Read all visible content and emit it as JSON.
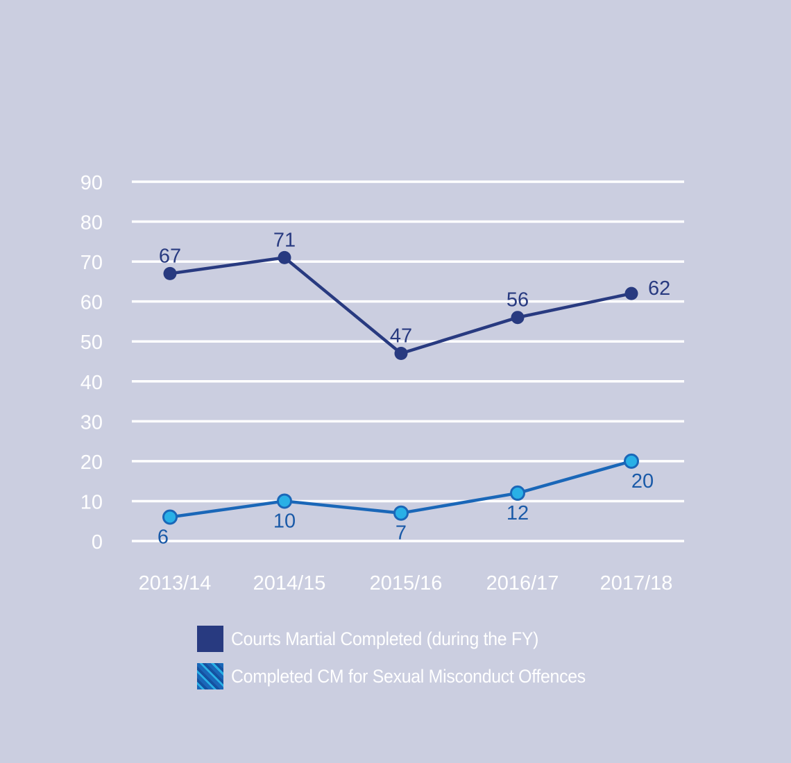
{
  "chart_data": {
    "type": "line",
    "categories": [
      "2013/14",
      "2014/15",
      "2015/16",
      "2016/17",
      "2017/18"
    ],
    "y_ticks": [
      "0",
      "10",
      "20",
      "30",
      "40",
      "50",
      "60",
      "70",
      "80",
      "90"
    ],
    "ylim": [
      0,
      90
    ],
    "grid": true,
    "legend_position": "bottom",
    "series": [
      {
        "name": "Courts Martial Completed (during the FY)",
        "values": [
          67,
          71,
          47,
          56,
          62
        ],
        "color": "#283a80",
        "label_placement": [
          "above",
          "above",
          "above",
          "above",
          "right"
        ]
      },
      {
        "name": "Completed CM for Sexual Misconduct Offences",
        "values": [
          6,
          10,
          7,
          12,
          20
        ],
        "color": "#1a67b8",
        "marker_color": "#29b0e6",
        "label_placement": [
          "below",
          "below",
          "below",
          "below",
          "below"
        ]
      }
    ],
    "colors": {
      "background": "#cbcee0",
      "grid": "#ffffff",
      "tick_text": "#ffffff",
      "label_text": "#283a80"
    }
  }
}
